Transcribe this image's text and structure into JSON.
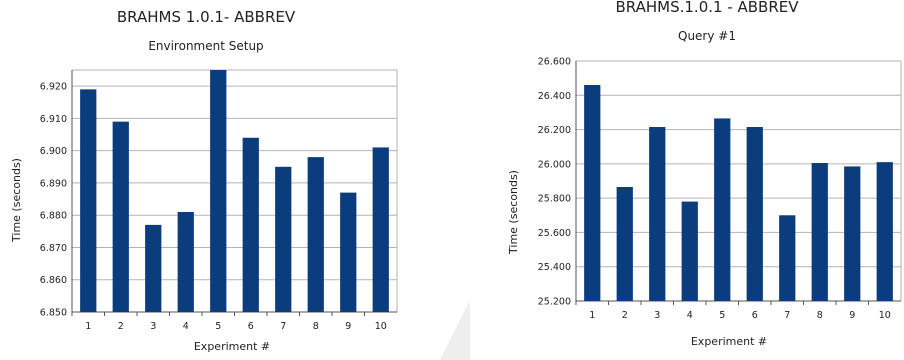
{
  "chart_data": [
    {
      "type": "bar",
      "title": "BRAHMS 1.0.1- ABBREV",
      "subtitle": "Environment Setup",
      "xlabel": "Experiment #",
      "ylabel": "Time (seconds)",
      "categories": [
        "1",
        "2",
        "3",
        "4",
        "5",
        "6",
        "7",
        "8",
        "9",
        "10"
      ],
      "values": [
        6.919,
        6.909,
        6.877,
        6.881,
        6.925,
        6.904,
        6.895,
        6.898,
        6.887,
        6.901
      ],
      "yticks": [
        "6.850",
        "6.860",
        "6.870",
        "6.880",
        "6.890",
        "6.900",
        "6.910",
        "6.920"
      ],
      "ylim": [
        6.85,
        6.925
      ],
      "grid": true,
      "bar_color": "#0b3d7e"
    },
    {
      "type": "bar",
      "title": "BRAHMS.1.0.1 - ABBREV",
      "subtitle": "Query #1",
      "xlabel": "Experiment #",
      "ylabel": "Time (seconds)",
      "categories": [
        "1",
        "2",
        "3",
        "4",
        "5",
        "6",
        "7",
        "8",
        "9",
        "10"
      ],
      "values": [
        26.46,
        25.865,
        26.215,
        25.78,
        26.265,
        26.215,
        25.7,
        26.005,
        25.985,
        26.01
      ],
      "yticks": [
        "25.200",
        "25.400",
        "25.600",
        "25.800",
        "26.000",
        "26.200",
        "26.400",
        "26.600"
      ],
      "ylim": [
        25.2,
        26.6
      ],
      "grid": true,
      "bar_color": "#0b3d7e"
    }
  ]
}
